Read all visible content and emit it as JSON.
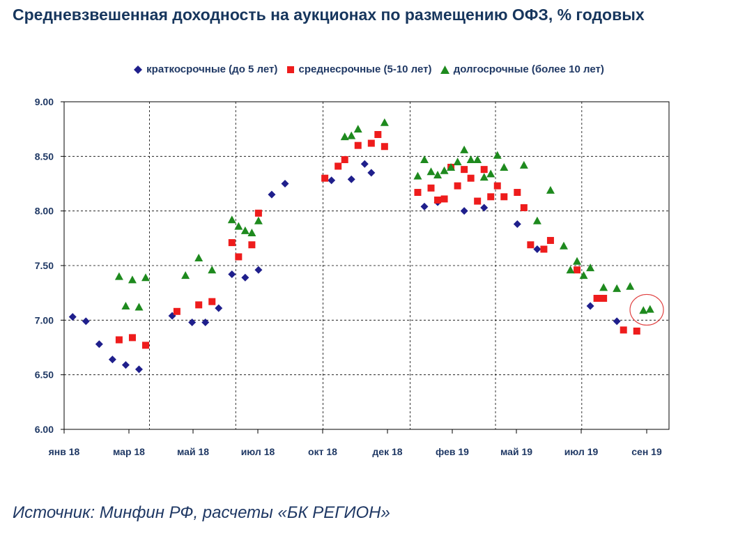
{
  "title": "Средневзвешенная доходность на аукционах по размещению ОФЗ, % годовых",
  "source": "Источник: Минфин РФ, расчеты «БК РЕГИОН»",
  "colors": {
    "short": "#1F1F8C",
    "medium": "#EE1C1C",
    "long": "#1E8A1E",
    "text": "#1F3864",
    "highlight": "#E04040"
  },
  "chart_data": {
    "type": "scatter",
    "title": "Средневзвешенная доходность на аукционах по размещению ОФЗ, % годовых",
    "ylim": [
      6.0,
      9.0
    ],
    "y_ticks": [
      "9.00",
      "8.50",
      "8.00",
      "7.50",
      "7.00",
      "6.50",
      "6.00"
    ],
    "x_ticks": [
      "янв 18",
      "мар 18",
      "май 18",
      "июл 18",
      "окт 18",
      "дек 18",
      "фев 19",
      "май 19",
      "июл 19",
      "сен 19"
    ],
    "grid": true,
    "legend_position": "top",
    "series": [
      {
        "name": "краткосрочные (до 5 лет)",
        "marker": "diamond",
        "points": [
          [
            "2018-01-10",
            7.03
          ],
          [
            "2018-01-24",
            6.99
          ],
          [
            "2018-02-07",
            6.78
          ],
          [
            "2018-02-21",
            6.64
          ],
          [
            "2018-03-07",
            6.59
          ],
          [
            "2018-03-21",
            6.55
          ],
          [
            "2018-04-25",
            7.04
          ],
          [
            "2018-05-16",
            6.98
          ],
          [
            "2018-05-30",
            6.98
          ],
          [
            "2018-06-13",
            7.11
          ],
          [
            "2018-06-27",
            7.42
          ],
          [
            "2018-07-11",
            7.39
          ],
          [
            "2018-07-25",
            7.46
          ],
          [
            "2018-08-08",
            8.15
          ],
          [
            "2018-08-22",
            8.25
          ],
          [
            "2018-10-10",
            8.28
          ],
          [
            "2018-10-31",
            8.29
          ],
          [
            "2018-11-14",
            8.43
          ],
          [
            "2018-11-21",
            8.35
          ],
          [
            "2019-01-16",
            8.04
          ],
          [
            "2019-01-30",
            8.08
          ],
          [
            "2019-02-27",
            8.0
          ],
          [
            "2019-03-20",
            8.03
          ],
          [
            "2019-04-24",
            7.88
          ],
          [
            "2019-05-15",
            7.65
          ],
          [
            "2019-07-10",
            7.13
          ],
          [
            "2019-08-07",
            6.99
          ]
        ]
      },
      {
        "name": "среднесрочные (5-10 лет)",
        "marker": "square",
        "points": [
          [
            "2018-02-28",
            6.82
          ],
          [
            "2018-03-14",
            6.84
          ],
          [
            "2018-03-28",
            6.77
          ],
          [
            "2018-04-30",
            7.08
          ],
          [
            "2018-05-23",
            7.14
          ],
          [
            "2018-06-06",
            7.17
          ],
          [
            "2018-06-27",
            7.71
          ],
          [
            "2018-07-04",
            7.58
          ],
          [
            "2018-07-18",
            7.69
          ],
          [
            "2018-07-25",
            7.98
          ],
          [
            "2018-10-03",
            8.3
          ],
          [
            "2018-10-17",
            8.41
          ],
          [
            "2018-10-24",
            8.47
          ],
          [
            "2018-11-07",
            8.6
          ],
          [
            "2018-11-21",
            8.62
          ],
          [
            "2018-11-28",
            8.7
          ],
          [
            "2018-12-05",
            8.59
          ],
          [
            "2019-01-09",
            8.17
          ],
          [
            "2019-01-23",
            8.21
          ],
          [
            "2019-01-30",
            8.1
          ],
          [
            "2019-02-06",
            8.11
          ],
          [
            "2019-02-13",
            8.4
          ],
          [
            "2019-02-20",
            8.23
          ],
          [
            "2019-02-27",
            8.38
          ],
          [
            "2019-03-06",
            8.3
          ],
          [
            "2019-03-13",
            8.09
          ],
          [
            "2019-03-20",
            8.38
          ],
          [
            "2019-03-27",
            8.13
          ],
          [
            "2019-04-03",
            8.23
          ],
          [
            "2019-04-10",
            8.13
          ],
          [
            "2019-04-24",
            8.17
          ],
          [
            "2019-05-01",
            8.03
          ],
          [
            "2019-05-08",
            7.69
          ],
          [
            "2019-05-22",
            7.65
          ],
          [
            "2019-05-29",
            7.73
          ],
          [
            "2019-06-26",
            7.46
          ],
          [
            "2019-07-17",
            7.2
          ],
          [
            "2019-07-24",
            7.2
          ],
          [
            "2019-08-14",
            6.91
          ],
          [
            "2019-08-28",
            6.9
          ]
        ]
      },
      {
        "name": "долгосрочные (более 10 лет)",
        "marker": "triangle",
        "points": [
          [
            "2018-02-28",
            7.4
          ],
          [
            "2018-03-07",
            7.13
          ],
          [
            "2018-03-14",
            7.37
          ],
          [
            "2018-03-21",
            7.12
          ],
          [
            "2018-03-28",
            7.39
          ],
          [
            "2018-05-09",
            7.41
          ],
          [
            "2018-05-23",
            7.57
          ],
          [
            "2018-06-06",
            7.46
          ],
          [
            "2018-06-27",
            7.92
          ],
          [
            "2018-07-04",
            7.86
          ],
          [
            "2018-07-11",
            7.82
          ],
          [
            "2018-07-18",
            7.8
          ],
          [
            "2018-07-25",
            7.91
          ],
          [
            "2018-10-24",
            8.68
          ],
          [
            "2018-10-31",
            8.69
          ],
          [
            "2018-11-07",
            8.75
          ],
          [
            "2018-12-05",
            8.81
          ],
          [
            "2019-01-09",
            8.32
          ],
          [
            "2019-01-16",
            8.47
          ],
          [
            "2019-01-23",
            8.36
          ],
          [
            "2019-01-30",
            8.33
          ],
          [
            "2019-02-06",
            8.37
          ],
          [
            "2019-02-13",
            8.4
          ],
          [
            "2019-02-20",
            8.45
          ],
          [
            "2019-02-27",
            8.56
          ],
          [
            "2019-03-06",
            8.47
          ],
          [
            "2019-03-13",
            8.47
          ],
          [
            "2019-03-20",
            8.31
          ],
          [
            "2019-03-27",
            8.34
          ],
          [
            "2019-04-03",
            8.51
          ],
          [
            "2019-04-10",
            8.4
          ],
          [
            "2019-05-01",
            8.42
          ],
          [
            "2019-05-15",
            7.91
          ],
          [
            "2019-05-29",
            8.19
          ],
          [
            "2019-06-12",
            7.68
          ],
          [
            "2019-06-19",
            7.46
          ],
          [
            "2019-06-26",
            7.54
          ],
          [
            "2019-07-03",
            7.41
          ],
          [
            "2019-07-10",
            7.48
          ],
          [
            "2019-07-24",
            7.3
          ],
          [
            "2019-08-07",
            7.29
          ],
          [
            "2019-08-21",
            7.31
          ],
          [
            "2019-09-04",
            7.09
          ],
          [
            "2019-09-11",
            7.1
          ]
        ]
      }
    ]
  }
}
